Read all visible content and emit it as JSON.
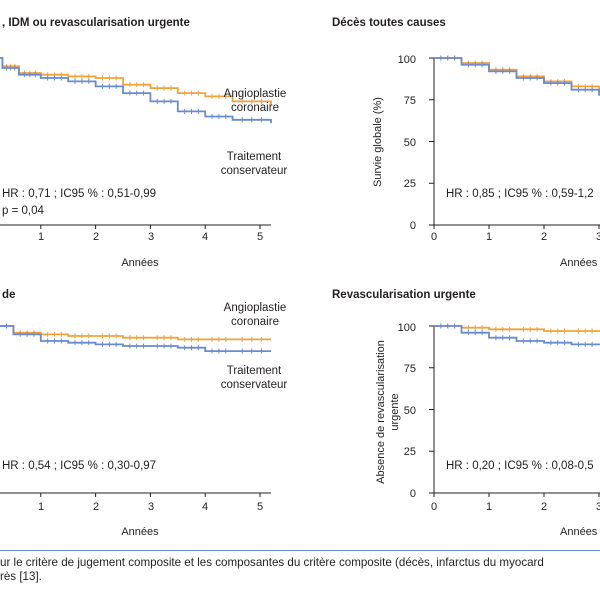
{
  "colors": {
    "angioplasty": "#f2a23d",
    "conservative": "#6a8bd0",
    "axis": "#231f20",
    "caption_rule": "#6d8fc4"
  },
  "caption": {
    "line1": "ur le critère de jugement composite et les composantes du critère composite (décès, infarctus du myocard",
    "line2": "rès [13]."
  },
  "chart_data": [
    {
      "type": "line",
      "title": ", IDM ou revascularisation urgente",
      "xlabel": "Années",
      "ylabel": "",
      "xlim": [
        0,
        5.2
      ],
      "ylim": [
        0,
        100
      ],
      "x_ticks": [
        "1",
        "2",
        "3",
        "4",
        "5"
      ],
      "y_ticks": [],
      "series": [
        {
          "name": "Angioplastie coronaire",
          "lines": [
            "Angioplastie",
            "coronaire"
          ],
          "x": [
            0,
            0.3,
            0.6,
            1.0,
            1.5,
            2.0,
            2.5,
            3.0,
            3.5,
            4.0,
            4.5,
            5.2
          ],
          "y": [
            100,
            95,
            91,
            90,
            89,
            88,
            84,
            82,
            79,
            77,
            74,
            72
          ]
        },
        {
          "name": "Traitement conservateur",
          "lines": [
            "Traitement",
            "conservateur"
          ],
          "x": [
            0,
            0.3,
            0.6,
            1.0,
            1.5,
            2.0,
            2.5,
            3.0,
            3.5,
            4.0,
            4.5,
            5.2
          ],
          "y": [
            100,
            94,
            90,
            88,
            86,
            83,
            79,
            74,
            68,
            65,
            63,
            61
          ]
        }
      ],
      "annotations": [
        "HR : 0,71 ; IC95 % : 0,51-0,99",
        "p = 0,04"
      ]
    },
    {
      "type": "line",
      "title": "Décès toutes causes",
      "xlabel": "Années",
      "ylabel": "Survie globale (%)",
      "xlim": [
        0,
        3.3
      ],
      "ylim": [
        0,
        100
      ],
      "x_ticks": [
        "0",
        "1",
        "2",
        "3"
      ],
      "y_ticks": [
        "0",
        "25",
        "50",
        "75",
        "100"
      ],
      "series": [
        {
          "name": "Angioplastie coronaire",
          "x": [
            0,
            0.5,
            1.0,
            1.5,
            2.0,
            2.5,
            3.0,
            3.3
          ],
          "y": [
            100,
            97,
            93,
            89,
            86,
            83,
            80,
            78
          ]
        },
        {
          "name": "Traitement conservateur",
          "x": [
            0,
            0.5,
            1.0,
            1.5,
            2.0,
            2.5,
            3.0,
            3.3
          ],
          "y": [
            100,
            96,
            92,
            88,
            85,
            81,
            78,
            76
          ]
        }
      ],
      "annotations": [
        "HR : 0,85 ; IC95 % : 0,59-1,2"
      ]
    },
    {
      "type": "line",
      "title": "de",
      "xlabel": "Années",
      "ylabel": "",
      "xlim": [
        0,
        5.2
      ],
      "ylim": [
        0,
        100
      ],
      "x_ticks": [
        "1",
        "2",
        "3",
        "4",
        "5"
      ],
      "y_ticks": [],
      "series": [
        {
          "name": "Angioplastie coronaire",
          "lines": [
            "Angioplastie",
            "coronaire"
          ],
          "x": [
            0,
            0.5,
            1.0,
            1.5,
            2.0,
            2.5,
            3.0,
            3.5,
            4.0,
            4.5,
            5.2
          ],
          "y": [
            100,
            96,
            95,
            94,
            94,
            93,
            93,
            92,
            92,
            92,
            92
          ]
        },
        {
          "name": "Traitement conservateur",
          "lines": [
            "Traitement",
            "conservateur"
          ],
          "x": [
            0,
            0.5,
            1.0,
            1.5,
            2.0,
            2.5,
            3.0,
            3.5,
            4.0,
            4.5,
            5.2
          ],
          "y": [
            100,
            95,
            91,
            90,
            89,
            88,
            88,
            87,
            85,
            85,
            85
          ]
        }
      ],
      "annotations": [
        "HR : 0,54 ; IC95 % : 0,30-0,97"
      ]
    },
    {
      "type": "line",
      "title": "Revascularisation urgente",
      "xlabel": "Années",
      "ylabel": "Absence de revascularisation urgente",
      "ylabel_lines": [
        "Absence de revascularisation",
        "urgente"
      ],
      "xlim": [
        0,
        3.3
      ],
      "ylim": [
        0,
        100
      ],
      "x_ticks": [
        "0",
        "1",
        "2",
        "3"
      ],
      "y_ticks": [
        "0",
        "25",
        "50",
        "75",
        "100"
      ],
      "series": [
        {
          "name": "Angioplastie coronaire",
          "x": [
            0,
            0.5,
            1.0,
            1.5,
            2.0,
            2.5,
            3.0,
            3.3
          ],
          "y": [
            100,
            99,
            98,
            98,
            97,
            97,
            97,
            97
          ]
        },
        {
          "name": "Traitement conservateur",
          "x": [
            0,
            0.5,
            1.0,
            1.5,
            2.0,
            2.5,
            3.0,
            3.3
          ],
          "y": [
            100,
            96,
            93,
            91,
            90,
            89,
            89,
            88
          ]
        }
      ],
      "annotations": [
        "HR : 0,20 ; IC95 % : 0,08-0,5"
      ]
    }
  ]
}
